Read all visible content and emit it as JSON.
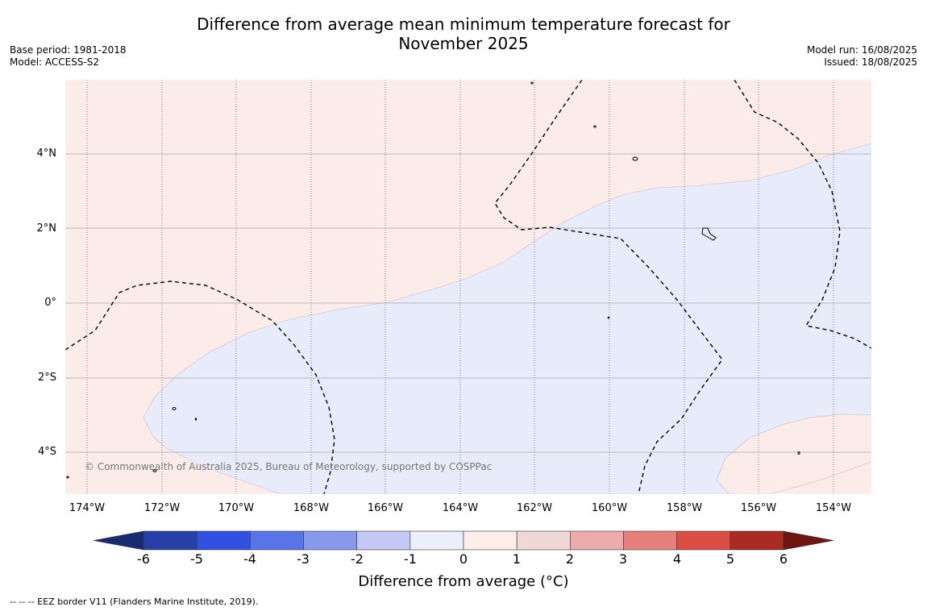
{
  "title": {
    "line1": "Difference from average mean minimum temperature forecast for",
    "line2": "November 2025"
  },
  "meta_left": {
    "base_period": "Base period: 1981-2018",
    "model": "Model: ACCESS-S2"
  },
  "meta_right": {
    "model_run": "Model run: 16/08/2025",
    "issued": "Issued: 18/08/2025"
  },
  "map": {
    "lat_labels": [
      "4°N",
      "2°N",
      "0°",
      "2°S",
      "4°S"
    ],
    "lon_labels": [
      "174°W",
      "172°W",
      "170°W",
      "168°W",
      "166°W",
      "164°W",
      "162°W",
      "160°W",
      "158°W",
      "156°W",
      "154°W"
    ],
    "copyright": "© Commonwealth of Australia 2025, Bureau of Meteorology, supported by COSPPac",
    "colors": {
      "warm_fill": "#fbebe9",
      "cool_fill": "#e8ebfa",
      "eez_line": "#000000",
      "grid": "#aaaaaa"
    }
  },
  "colorbar": {
    "ticks": [
      "-6",
      "-5",
      "-4",
      "-3",
      "-2",
      "-1",
      "0",
      "1",
      "2",
      "3",
      "4",
      "5",
      "6"
    ],
    "colors": [
      "#2640a8",
      "#3050e0",
      "#5a73e6",
      "#8898ec",
      "#c3c9f4",
      "#eceefb",
      "#fdeeec",
      "#f0d8d6",
      "#eeabab",
      "#e6807b",
      "#db4e44",
      "#aa2a24"
    ],
    "under_color": "#1a2a70",
    "over_color": "#6e1612",
    "label": "Difference from average (°C)"
  },
  "footer": "--  --  -- EEZ border V11 (Flanders Marine Institute, 2019)."
}
